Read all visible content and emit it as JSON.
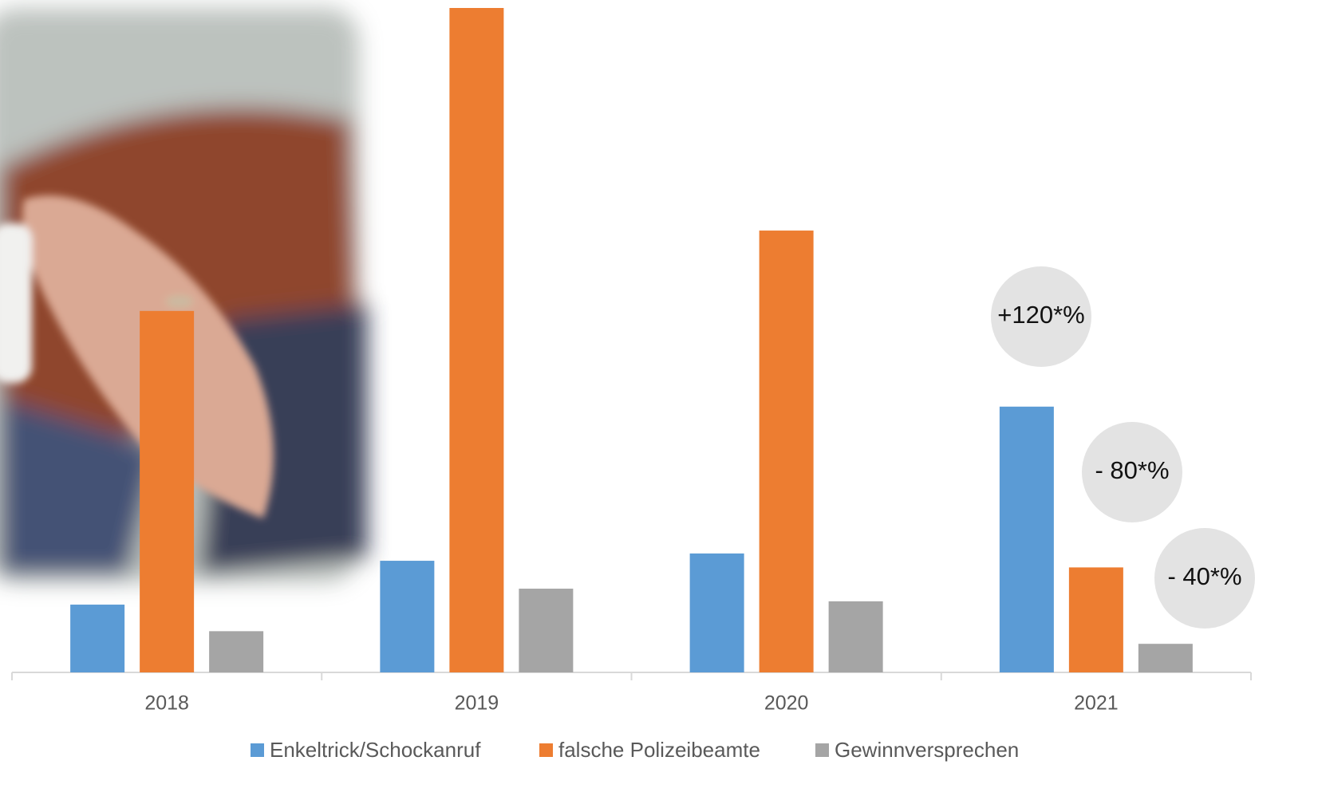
{
  "chart_data": {
    "type": "bar",
    "categories": [
      "2018",
      "2019",
      "2020",
      "2021"
    ],
    "series": [
      {
        "name": "Enkeltrick/Schockanruf",
        "color": "#5b9bd5",
        "values": [
          10.2,
          16.8,
          17.9,
          40
        ]
      },
      {
        "name": "falsche Polizeibeamte",
        "color": "#ed7d31",
        "values": [
          54.4,
          100,
          66.5,
          15.8
        ]
      },
      {
        "name": "Gewinnversprechen",
        "color": "#a5a5a5",
        "values": [
          6.2,
          12.6,
          10.7,
          4.3
        ]
      }
    ],
    "ylim": [
      0,
      100
    ],
    "grid": false,
    "legend": "bottom",
    "annotations": [
      "+120*%",
      "- 80*%",
      "- 40*%"
    ]
  }
}
